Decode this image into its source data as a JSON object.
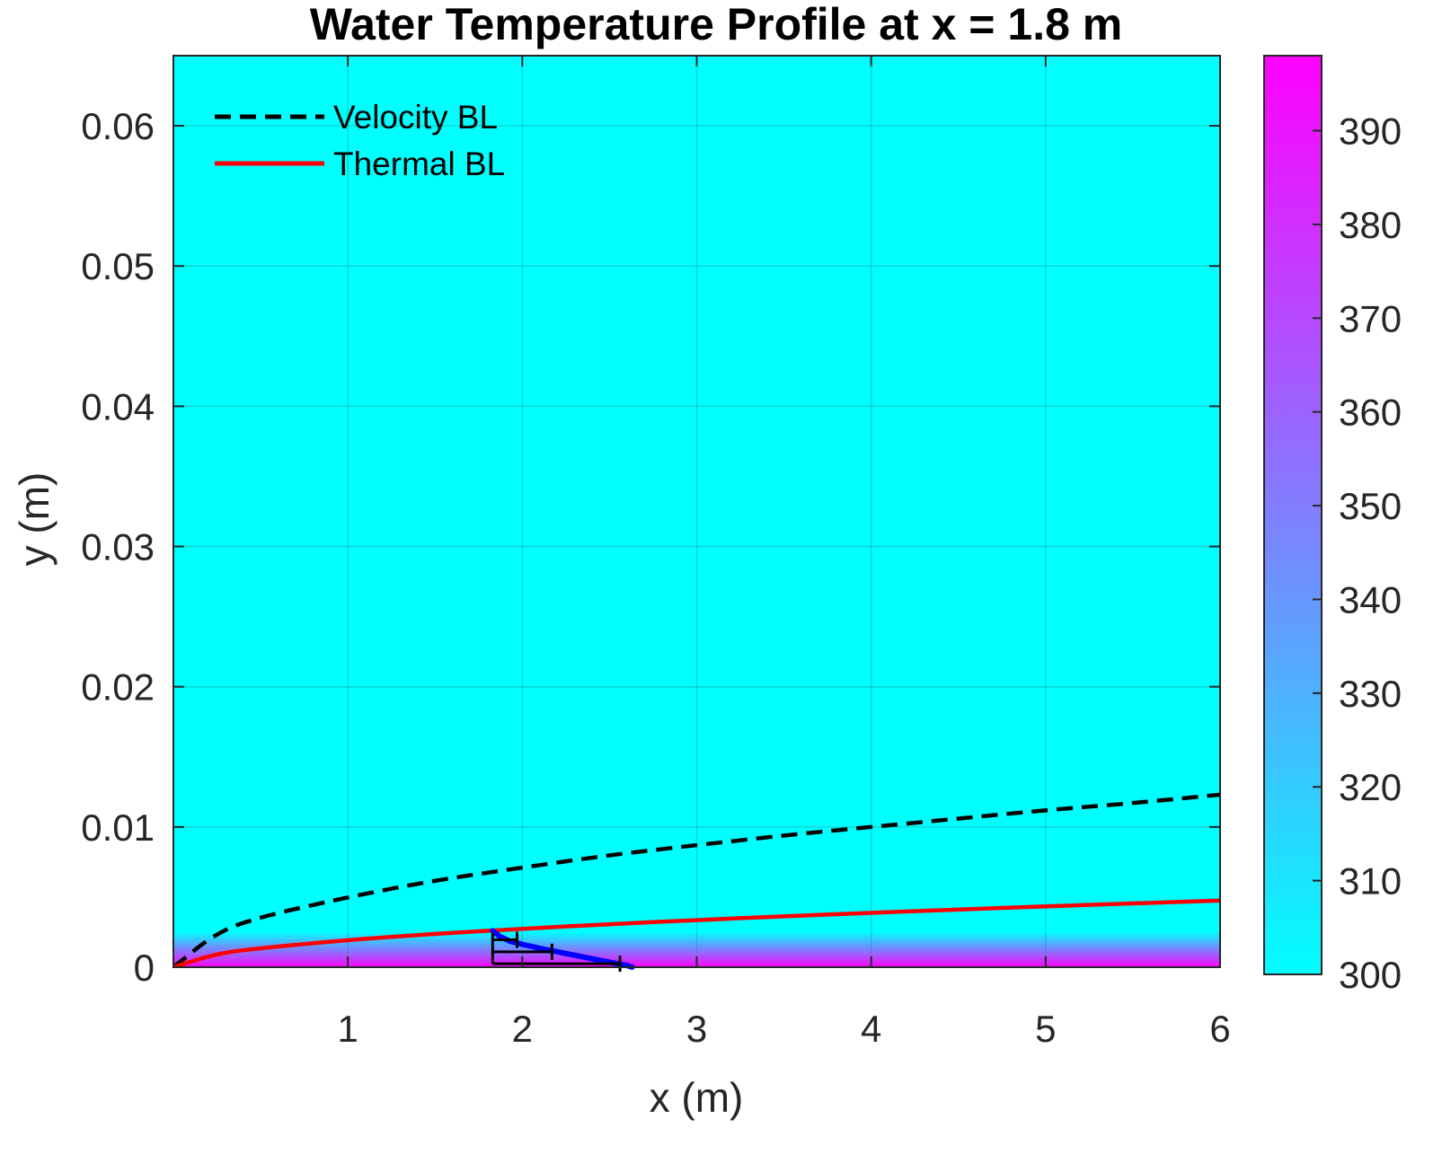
{
  "colors": {
    "background": "#00FFFF",
    "colormap_low": "#00FFFF",
    "colormap_high": "#FF00FF",
    "velocity_bl": "#000000",
    "thermal_bl": "#FF0000",
    "profile": "#0000FF",
    "grid": "#1a8a8a"
  },
  "chart_data": {
    "type": "heatmap",
    "title": "Water Temperature Profile at x = 1.8 m",
    "xlabel": "x (m)",
    "ylabel": "y (m)",
    "xlim": [
      0,
      6
    ],
    "ylim": [
      0,
      0.065
    ],
    "xticks": [
      1,
      2,
      3,
      4,
      5,
      6
    ],
    "xtick_labels": [
      "1",
      "2",
      "3",
      "4",
      "5",
      "6"
    ],
    "yticks": [
      0,
      0.01,
      0.02,
      0.03,
      0.04,
      0.05,
      0.06
    ],
    "ytick_labels": [
      "0",
      "0.01",
      "0.02",
      "0.03",
      "0.04",
      "0.05",
      "0.06"
    ],
    "grid": true,
    "legend": {
      "location": "top-left",
      "entries": [
        "Velocity BL",
        "Thermal BL"
      ]
    },
    "colorbar": {
      "range": [
        300,
        398
      ],
      "ticks": [
        300,
        310,
        320,
        330,
        340,
        350,
        360,
        370,
        380,
        390
      ],
      "tick_labels": [
        "300",
        "310",
        "320",
        "330",
        "340",
        "350",
        "360",
        "370",
        "380",
        "390"
      ]
    },
    "field": {
      "free_stream_value": 300,
      "wall_value": 398
    },
    "series": [
      {
        "name": "Velocity BL",
        "style": "dashed",
        "x": [
          0,
          0.25,
          0.5,
          1,
          1.5,
          2,
          2.5,
          3,
          3.5,
          4,
          4.5,
          5,
          5.5,
          6
        ],
        "y": [
          0,
          0.0025,
          0.0036,
          0.005,
          0.0062,
          0.0071,
          0.008,
          0.0087,
          0.0094,
          0.01,
          0.0106,
          0.0112,
          0.0117,
          0.0123
        ]
      },
      {
        "name": "Thermal BL",
        "style": "solid",
        "x": [
          0,
          0.25,
          0.5,
          1,
          1.5,
          2,
          2.5,
          3,
          3.5,
          4,
          4.5,
          5,
          5.5,
          6
        ],
        "y": [
          0,
          0.00097,
          0.00137,
          0.00194,
          0.00238,
          0.00274,
          0.00307,
          0.00336,
          0.00363,
          0.00388,
          0.00411,
          0.00434,
          0.00455,
          0.00475
        ]
      }
    ],
    "profile_curve": {
      "x": [
        1.83,
        1.87,
        1.93,
        2.01,
        2.1,
        2.2,
        2.3,
        2.4,
        2.5,
        2.6,
        2.63
      ],
      "y": [
        0.0026,
        0.0022,
        0.00185,
        0.0016,
        0.00135,
        0.0011,
        0.00085,
        0.0006,
        0.00035,
        0.00012,
        0.0
      ]
    },
    "profile_arrows": {
      "base_x": 1.83,
      "segments": [
        {
          "y": 0.00195,
          "x_end": 1.97
        },
        {
          "y": 0.0011,
          "x_end": 2.17
        },
        {
          "y": 0.00025,
          "x_end": 2.56
        }
      ]
    }
  }
}
